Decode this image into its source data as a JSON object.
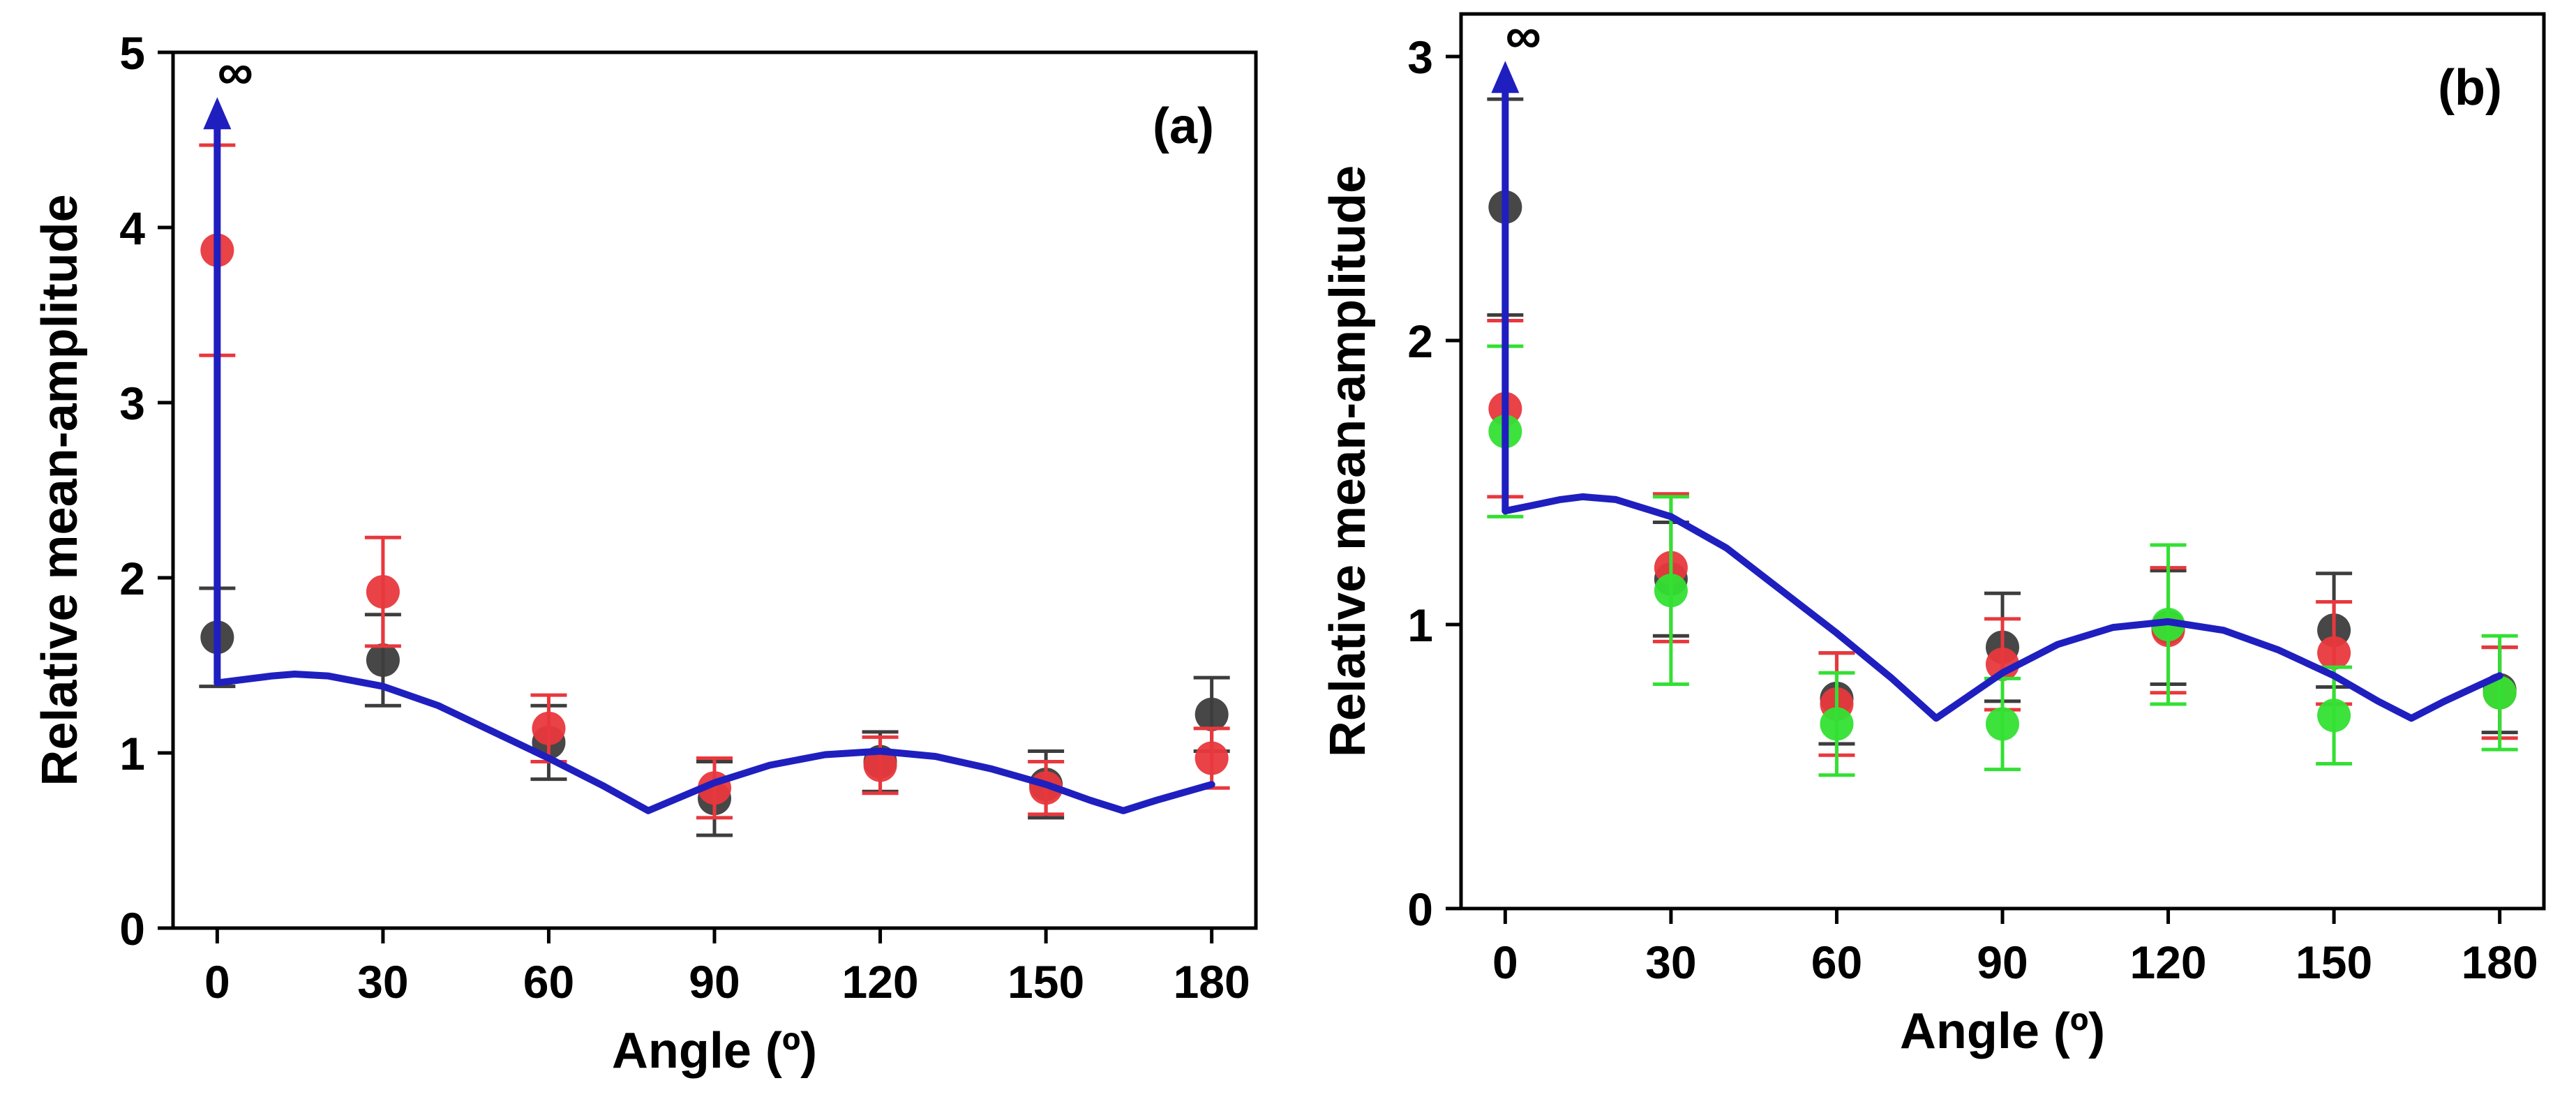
{
  "chart_data": [
    {
      "type": "scatter",
      "panel_label": "(a)",
      "xlabel": "Angle (º)",
      "ylabel": "Relative mean-amplitude",
      "xlim": [
        -8,
        188
      ],
      "ylim": [
        0,
        5
      ],
      "xticks": [
        0,
        30,
        60,
        90,
        120,
        150,
        180
      ],
      "yticks": [
        0,
        1,
        2,
        3,
        4,
        5
      ],
      "infinity_label": "∞",
      "infinity_arrow": {
        "x": 0,
        "from": 1.4,
        "to": 4.72,
        "color": "#1f1fbf"
      },
      "series": [
        {
          "color": "#3d3d3d",
          "x": [
            0,
            30,
            60,
            90,
            120,
            150,
            180
          ],
          "y": [
            1.66,
            1.53,
            1.06,
            0.74,
            0.95,
            0.82,
            1.22
          ],
          "err": [
            0.28,
            0.26,
            0.21,
            0.21,
            0.17,
            0.19,
            0.21
          ]
        },
        {
          "color": "#e8383d",
          "x": [
            0,
            30,
            60,
            90,
            120,
            150,
            180
          ],
          "y": [
            3.87,
            1.92,
            1.14,
            0.8,
            0.93,
            0.8,
            0.97
          ],
          "err": [
            0.6,
            0.31,
            0.19,
            0.17,
            0.16,
            0.15,
            0.17
          ]
        }
      ],
      "model_curve": {
        "color": "#1f1fbf",
        "x": [
          0,
          5,
          10,
          14,
          20,
          30,
          40,
          50,
          60,
          70,
          78,
          90,
          100,
          110,
          120,
          130,
          140,
          150,
          158,
          164,
          170,
          180
        ],
        "y": [
          1.4,
          1.42,
          1.44,
          1.45,
          1.44,
          1.38,
          1.27,
          1.12,
          0.97,
          0.81,
          0.67,
          0.83,
          0.93,
          0.99,
          1.01,
          0.98,
          0.91,
          0.82,
          0.73,
          0.67,
          0.73,
          0.82
        ]
      }
    },
    {
      "type": "scatter",
      "panel_label": "(b)",
      "xlabel": "Angle (º)",
      "ylabel": "Relative mean-amplitude",
      "xlim": [
        -8,
        188
      ],
      "ylim": [
        0,
        3.15
      ],
      "xticks": [
        0,
        30,
        60,
        90,
        120,
        150,
        180
      ],
      "yticks": [
        0,
        1,
        2,
        3
      ],
      "infinity_label": "∞",
      "infinity_arrow": {
        "x": 0,
        "from": 1.4,
        "to": 2.97,
        "color": "#1f1fbf"
      },
      "series": [
        {
          "color": "#3d3d3d",
          "x": [
            0,
            30,
            60,
            90,
            120,
            150,
            180
          ],
          "y": [
            2.47,
            1.16,
            0.74,
            0.92,
            0.99,
            0.98,
            0.77
          ],
          "err": [
            0.38,
            0.2,
            0.16,
            0.19,
            0.2,
            0.2,
            0.15
          ]
        },
        {
          "color": "#e8383d",
          "x": [
            0,
            30,
            60,
            90,
            120,
            150,
            180
          ],
          "y": [
            1.76,
            1.2,
            0.72,
            0.86,
            0.98,
            0.9,
            0.76
          ],
          "err": [
            0.31,
            0.26,
            0.18,
            0.16,
            0.22,
            0.18,
            0.16
          ]
        },
        {
          "color": "#33e033",
          "x": [
            0,
            30,
            60,
            90,
            120,
            150,
            180
          ],
          "y": [
            1.68,
            1.12,
            0.65,
            0.65,
            1.0,
            0.68,
            0.76
          ],
          "err": [
            0.3,
            0.33,
            0.18,
            0.16,
            0.28,
            0.17,
            0.2
          ]
        }
      ],
      "model_curve": {
        "color": "#1f1fbf",
        "x": [
          0,
          5,
          10,
          14,
          20,
          30,
          40,
          50,
          60,
          70,
          78,
          90,
          100,
          110,
          120,
          130,
          140,
          150,
          158,
          164,
          170,
          180
        ],
        "y": [
          1.4,
          1.42,
          1.44,
          1.45,
          1.44,
          1.38,
          1.27,
          1.12,
          0.97,
          0.81,
          0.67,
          0.83,
          0.93,
          0.99,
          1.01,
          0.98,
          0.91,
          0.82,
          0.73,
          0.67,
          0.73,
          0.82
        ]
      }
    }
  ]
}
